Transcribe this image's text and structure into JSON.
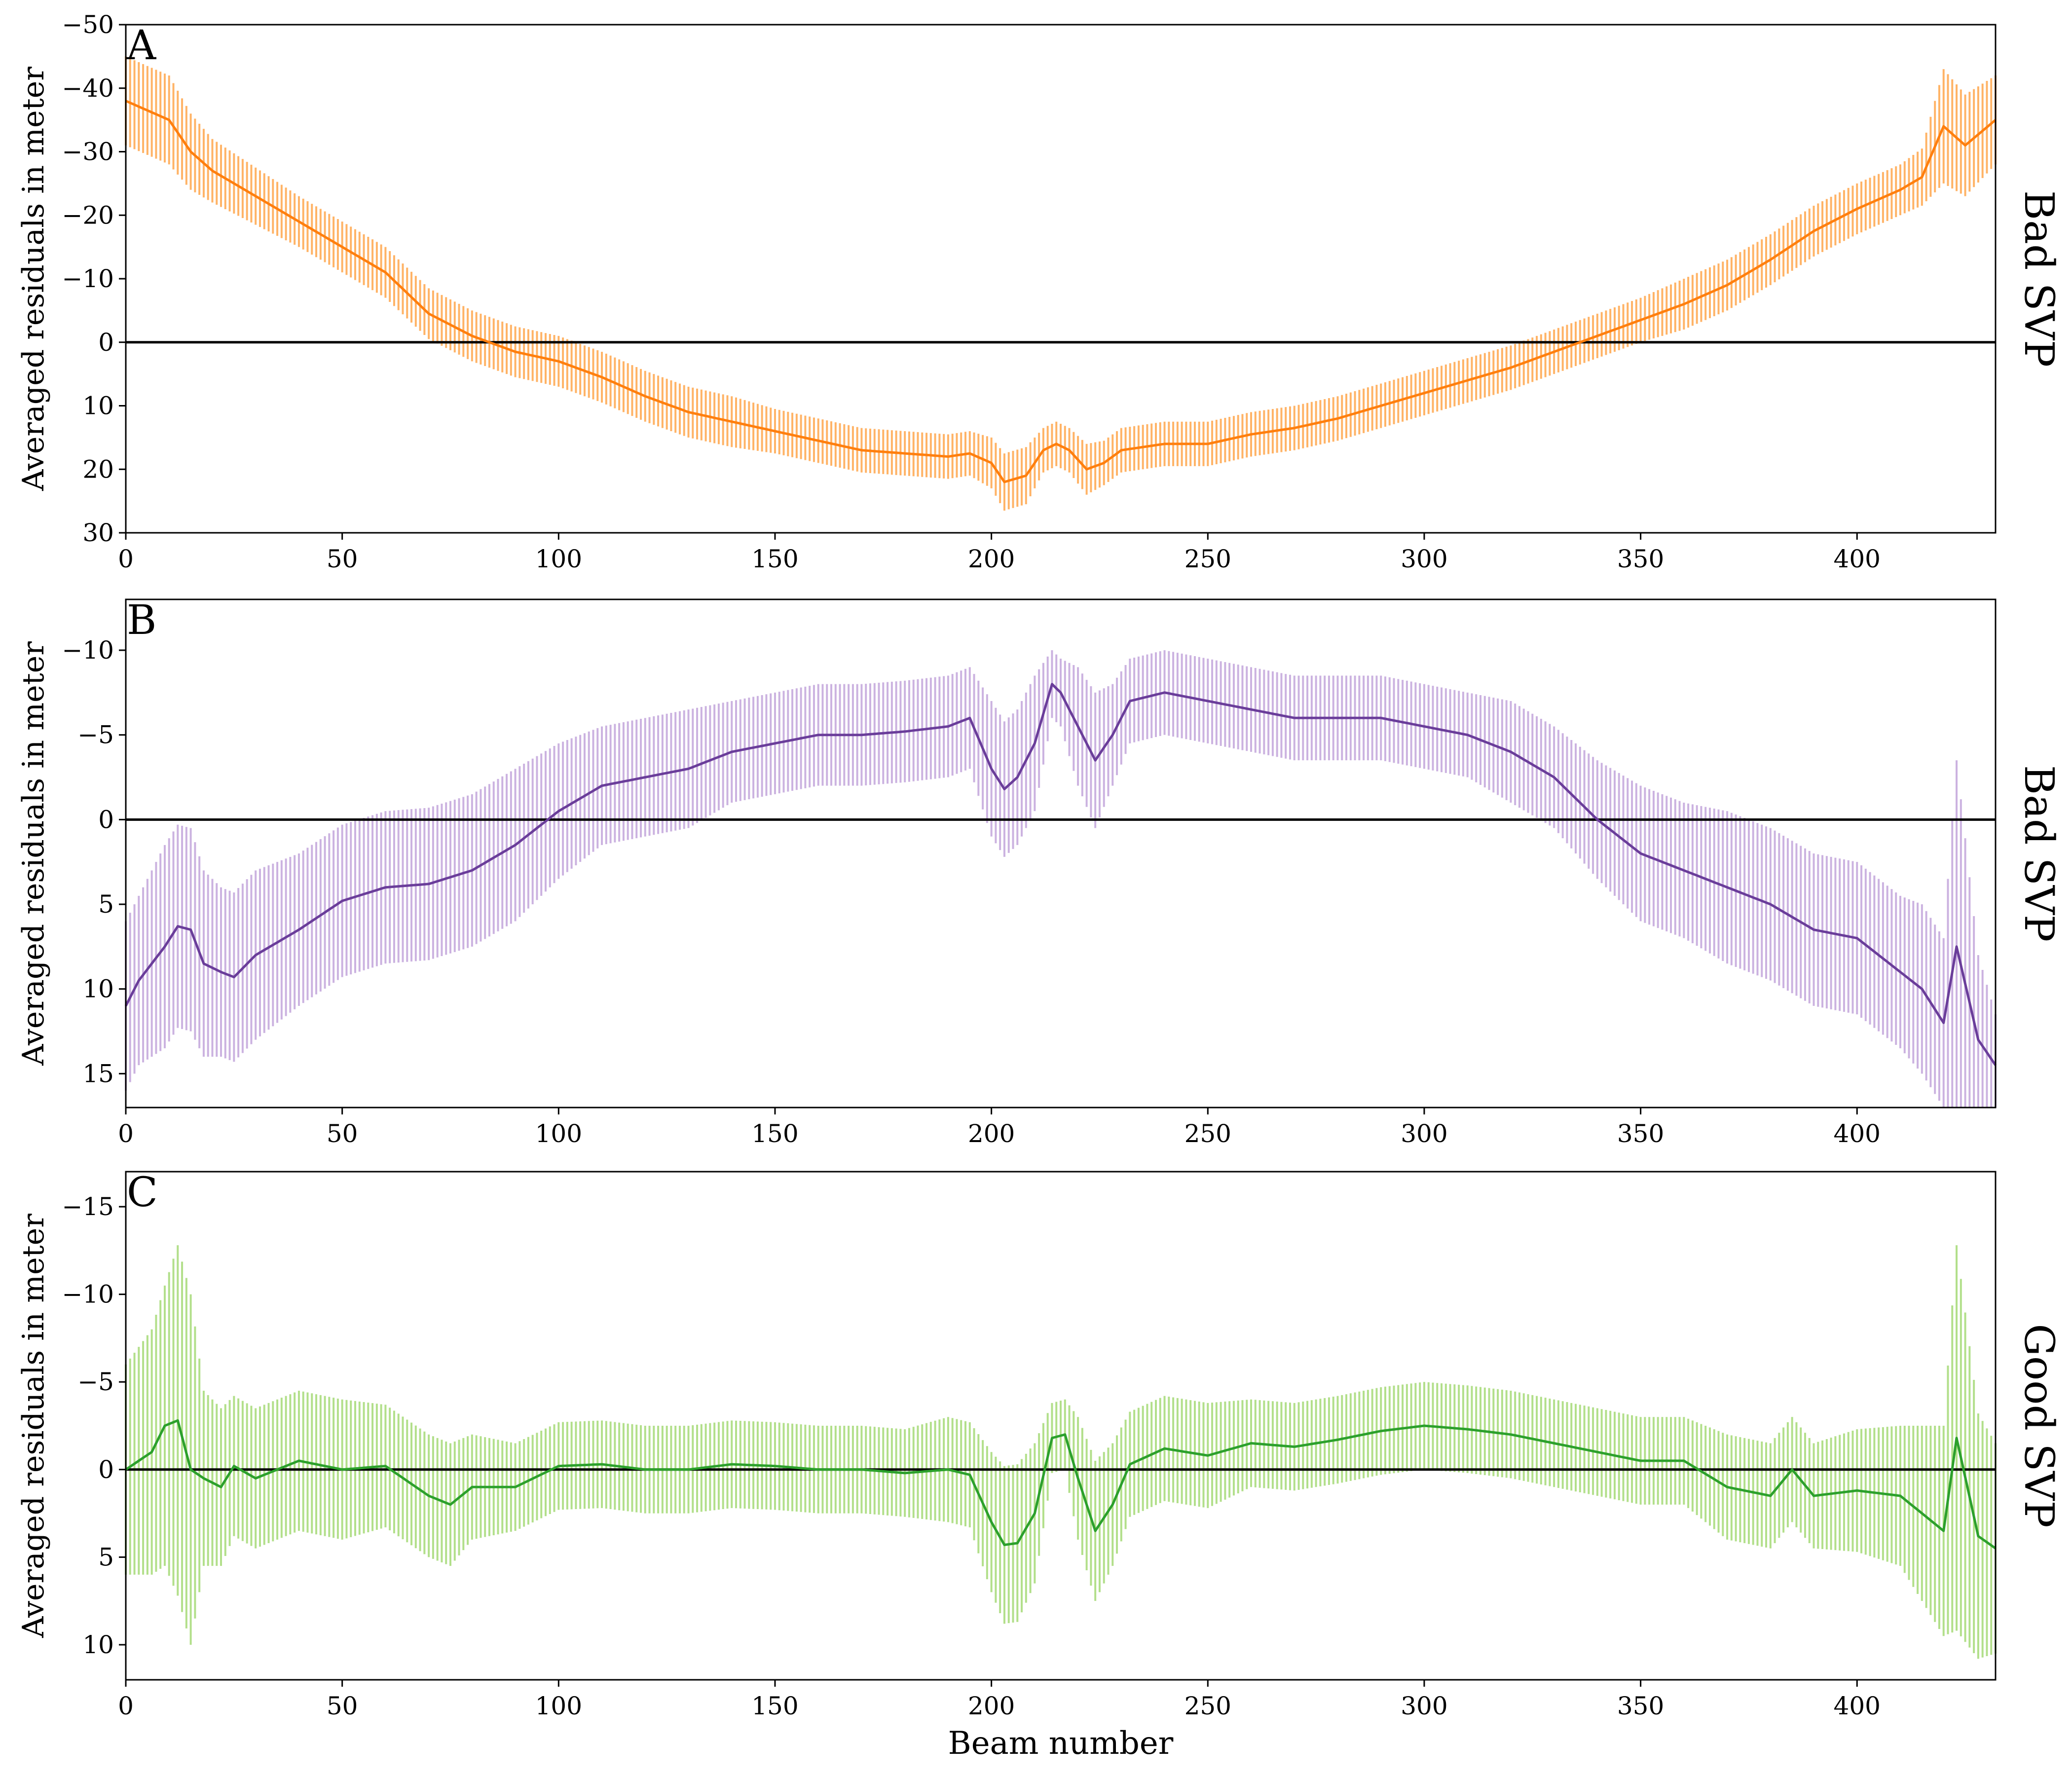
{
  "chart_data": [
    {
      "type": "line",
      "panel_letter": "A",
      "side_label": "Bad SVP",
      "ylabel": "Averaged residuals in meter",
      "xlabel": "",
      "xlim": [
        0,
        432
      ],
      "ylim": [
        30,
        -50
      ],
      "y_inverted": true,
      "xticks": [
        0,
        50,
        100,
        150,
        200,
        250,
        300,
        350,
        400
      ],
      "yticks": [
        -50,
        -40,
        -30,
        -20,
        -10,
        0,
        10,
        20,
        30
      ],
      "reference_line": 0,
      "grid": false,
      "error_bars": true,
      "series": [
        {
          "color": "#ff7f0e",
          "errorbar_color": "#ffb366",
          "x": [
            0,
            10,
            15,
            20,
            30,
            40,
            50,
            60,
            70,
            80,
            90,
            100,
            110,
            120,
            130,
            140,
            150,
            160,
            170,
            180,
            190,
            195,
            200,
            203,
            208,
            212,
            215,
            218,
            222,
            226,
            230,
            240,
            250,
            260,
            270,
            280,
            290,
            300,
            310,
            320,
            330,
            340,
            350,
            360,
            370,
            380,
            390,
            400,
            410,
            415,
            420,
            425,
            432
          ],
          "y": [
            -38,
            -35,
            -30,
            -27,
            -23,
            -19,
            -15,
            -11,
            -4.5,
            -1,
            1.5,
            3,
            5.5,
            8.5,
            11,
            12.5,
            14,
            15.5,
            17,
            17.5,
            18,
            17.5,
            19,
            22,
            21,
            17,
            16,
            17,
            20,
            19,
            17,
            16,
            16,
            14.5,
            13.5,
            12,
            10,
            8,
            6,
            4,
            1.5,
            -1,
            -3.5,
            -6,
            -9,
            -13,
            -17.5,
            -21,
            -24,
            -26,
            -34,
            -31,
            -35
          ],
          "err": [
            7,
            7,
            6,
            5,
            4.5,
            4,
            4,
            4,
            4,
            4,
            4,
            4,
            4,
            4,
            4,
            4,
            3.5,
            3.5,
            3.5,
            3.5,
            3.5,
            3.5,
            4,
            4.5,
            4.5,
            3.5,
            3.5,
            3.5,
            4,
            3.5,
            3.5,
            3.5,
            3.5,
            3.5,
            3.5,
            3.5,
            3.5,
            3.5,
            3.5,
            3.5,
            3.5,
            3.5,
            3.5,
            4,
            4,
            4,
            4,
            4,
            4,
            4.5,
            9,
            8,
            7
          ]
        }
      ]
    },
    {
      "type": "line",
      "panel_letter": "B",
      "side_label": "Bad SVP",
      "ylabel": "Averaged residuals in meter",
      "xlabel": "",
      "xlim": [
        0,
        432
      ],
      "ylim": [
        17,
        -13
      ],
      "y_inverted": true,
      "xticks": [
        0,
        50,
        100,
        150,
        200,
        250,
        300,
        350,
        400
      ],
      "yticks": [
        -10,
        -5,
        0,
        5,
        10,
        15
      ],
      "reference_line": 0,
      "grid": false,
      "error_bars": true,
      "series": [
        {
          "color": "#6a3d9a",
          "errorbar_color": "#cbb2e0",
          "x": [
            0,
            3,
            6,
            9,
            12,
            15,
            18,
            22,
            25,
            30,
            40,
            50,
            60,
            70,
            80,
            90,
            100,
            110,
            120,
            130,
            140,
            150,
            160,
            170,
            180,
            190,
            195,
            200,
            203,
            206,
            210,
            214,
            216,
            220,
            224,
            228,
            232,
            240,
            250,
            260,
            270,
            280,
            290,
            300,
            310,
            320,
            330,
            340,
            350,
            360,
            370,
            380,
            390,
            400,
            410,
            415,
            420,
            423,
            428,
            432
          ],
          "y": [
            11,
            9.5,
            8.5,
            7.5,
            6.3,
            6.5,
            8.5,
            9,
            9.3,
            8,
            6.5,
            4.8,
            4,
            3.8,
            3,
            1.5,
            -0.5,
            -2,
            -2.5,
            -3,
            -4,
            -4.5,
            -5,
            -5,
            -5.2,
            -5.5,
            -6,
            -3,
            -1.8,
            -2.5,
            -4.5,
            -8,
            -7.5,
            -5.5,
            -3.5,
            -5,
            -7,
            -7.5,
            -7,
            -6.5,
            -6,
            -6,
            -6,
            -5.5,
            -5,
            -4,
            -2.5,
            0,
            2,
            3,
            4,
            5,
            6.5,
            7,
            9,
            10,
            12,
            7.5,
            13,
            14.5
          ],
          "err": [
            5,
            5,
            5.5,
            6,
            6,
            6,
            5.5,
            5,
            5,
            5,
            4.5,
            4.5,
            4.5,
            4.5,
            4.5,
            4.5,
            4,
            3.5,
            3.5,
            3.5,
            3,
            3,
            3,
            3,
            3,
            3,
            3,
            4,
            4,
            4,
            4,
            2,
            2,
            3.5,
            4,
            3,
            2.5,
            2.5,
            2.5,
            2.5,
            2.5,
            2.5,
            2.5,
            2.5,
            2.5,
            3,
            3,
            3.5,
            4,
            4,
            4.5,
            4.5,
            4.5,
            4.5,
            4.5,
            5,
            5,
            11,
            5,
            3
          ]
        }
      ]
    },
    {
      "type": "line",
      "panel_letter": "C",
      "side_label": "Good SVP",
      "ylabel": "Averaged residuals in meter",
      "xlabel": "Beam number",
      "xlim": [
        0,
        432
      ],
      "ylim": [
        12,
        -17
      ],
      "y_inverted": true,
      "xticks": [
        0,
        50,
        100,
        150,
        200,
        250,
        300,
        350,
        400
      ],
      "yticks": [
        -15,
        -10,
        -5,
        0,
        5,
        10
      ],
      "reference_line": 0,
      "grid": false,
      "error_bars": true,
      "series": [
        {
          "color": "#2ca02c",
          "errorbar_color": "#b2df8a",
          "x": [
            0,
            3,
            6,
            9,
            12,
            15,
            18,
            22,
            25,
            30,
            40,
            50,
            60,
            70,
            75,
            80,
            90,
            100,
            110,
            120,
            130,
            140,
            150,
            160,
            170,
            180,
            190,
            195,
            200,
            203,
            206,
            210,
            214,
            217,
            220,
            224,
            228,
            232,
            240,
            250,
            260,
            270,
            280,
            290,
            300,
            310,
            320,
            330,
            340,
            350,
            360,
            370,
            380,
            385,
            390,
            400,
            410,
            415,
            420,
            423,
            428,
            432
          ],
          "y": [
            0,
            -0.5,
            -1,
            -2.5,
            -2.8,
            0,
            0.5,
            1,
            -0.2,
            0.5,
            -0.5,
            0,
            -0.2,
            1.5,
            2,
            1,
            1,
            -0.2,
            -0.3,
            0,
            0,
            -0.3,
            -0.2,
            0,
            0,
            0.2,
            0,
            0.3,
            3,
            4.3,
            4.2,
            2.5,
            -1.8,
            -2,
            0.5,
            3.5,
            2,
            -0.3,
            -1.2,
            -0.8,
            -1.5,
            -1.3,
            -1.7,
            -2.2,
            -2.5,
            -2.3,
            -2,
            -1.5,
            -1,
            -0.5,
            -0.5,
            1,
            1.5,
            0,
            1.5,
            1.2,
            1.5,
            2.5,
            3.5,
            -1.8,
            3.8,
            4.5
          ],
          "err": [
            6,
            6.5,
            7,
            8,
            10,
            10,
            5,
            4.5,
            4,
            4,
            4,
            4,
            3.5,
            3.5,
            3.5,
            3,
            2.5,
            2.5,
            2.5,
            2.5,
            2.5,
            2.5,
            2.5,
            2.5,
            2.5,
            2.5,
            3,
            3,
            4,
            4.5,
            4.5,
            4,
            2,
            2,
            3.5,
            4,
            3.5,
            3,
            3,
            3,
            2.5,
            2.5,
            2.5,
            2.5,
            2.5,
            2.5,
            2.5,
            2.5,
            2.5,
            2.5,
            2.5,
            3,
            3,
            3,
            3,
            3.5,
            4,
            5,
            6,
            11,
            7,
            6
          ]
        }
      ]
    }
  ]
}
